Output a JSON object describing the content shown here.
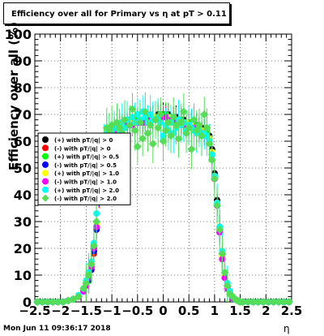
{
  "chart_data": {
    "type": "scatter",
    "title": "Efficiency over all for Primary vs   η at pT > 0.11",
    "xlabel": "η",
    "ylabel": "Efficiency over all (%)",
    "xlim": [
      -2.5,
      2.5
    ],
    "ylim": [
      0,
      100
    ],
    "xticks": [
      "−2.5",
      "−2",
      "−1.5",
      "−1",
      "−0.5",
      "0",
      "0.5",
      "1",
      "1.5",
      "2",
      "2.5"
    ],
    "yticks": [
      "0",
      "10",
      "20",
      "30",
      "40",
      "50",
      "60",
      "70",
      "80",
      "90",
      "100"
    ],
    "grid": true,
    "legend_position": "left",
    "timestamp": "Mon Jun 11 09:36:17 2018",
    "x": [
      -2.45,
      -2.35,
      -2.25,
      -2.15,
      -2.05,
      -1.95,
      -1.85,
      -1.75,
      -1.65,
      -1.55,
      -1.5,
      -1.45,
      -1.4,
      -1.35,
      -1.3,
      -1.25,
      -1.2,
      -1.15,
      -1.1,
      -1.05,
      -1.0,
      -0.95,
      -0.9,
      -0.85,
      -0.8,
      -0.75,
      -0.7,
      -0.65,
      -0.6,
      -0.55,
      -0.5,
      -0.45,
      -0.4,
      -0.35,
      -0.3,
      -0.25,
      -0.2,
      -0.15,
      -0.1,
      -0.05,
      0.0,
      0.05,
      0.1,
      0.15,
      0.2,
      0.25,
      0.3,
      0.35,
      0.4,
      0.45,
      0.5,
      0.55,
      0.6,
      0.65,
      0.7,
      0.75,
      0.8,
      0.85,
      0.9,
      0.95,
      1.0,
      1.05,
      1.1,
      1.15,
      1.2,
      1.25,
      1.3,
      1.35,
      1.4,
      1.45,
      1.5,
      1.55,
      1.65,
      1.75,
      1.85,
      1.95,
      2.05,
      2.15,
      2.25,
      2.35,
      2.45
    ],
    "series": [
      {
        "name": "(+) with pT/|q| > 0",
        "color": "#000000",
        "marker": "circle",
        "values": [
          0,
          0,
          0,
          0,
          0,
          0,
          0.5,
          1,
          2,
          5,
          7,
          9,
          13,
          19,
          28,
          40,
          52,
          58,
          61,
          62,
          63,
          64,
          65,
          66,
          66,
          67,
          67,
          68,
          68,
          68,
          68,
          68,
          68,
          68,
          69,
          69,
          69,
          69,
          70,
          70,
          70,
          70,
          70,
          69,
          69,
          69,
          68,
          68,
          68,
          67,
          67,
          67,
          66,
          66,
          65,
          65,
          64,
          63,
          62,
          57,
          48,
          38,
          28,
          18,
          10,
          6,
          3,
          2,
          1,
          0.5,
          0,
          0,
          0,
          0,
          0,
          0,
          0,
          0,
          0,
          0,
          0
        ]
      },
      {
        "name": "(-) with pT/|q| > 0",
        "color": "#ff0000",
        "marker": "circle",
        "values": [
          0,
          0,
          0,
          0,
          0,
          0,
          0.5,
          1,
          2,
          4,
          6,
          8,
          12,
          18,
          27,
          39,
          51,
          57,
          60,
          61,
          62,
          63,
          64,
          65,
          65,
          66,
          66,
          67,
          67,
          67,
          67,
          67,
          67,
          67,
          68,
          68,
          68,
          68,
          69,
          69,
          69,
          69,
          69,
          68,
          68,
          68,
          67,
          67,
          67,
          66,
          66,
          66,
          65,
          65,
          64,
          64,
          63,
          62,
          61,
          55,
          46,
          36,
          26,
          16,
          9,
          5,
          3,
          1.5,
          1,
          0.5,
          0,
          0,
          0,
          0,
          0,
          0,
          0,
          0,
          0,
          0,
          0
        ]
      },
      {
        "name": "(+) with pT/|q| > 0.5",
        "color": "#00ff00",
        "marker": "circle",
        "values": [
          0,
          0,
          0,
          0,
          0,
          0,
          0.5,
          1,
          2,
          5,
          7,
          9,
          13,
          20,
          28,
          41,
          52,
          58,
          61,
          62,
          63,
          64,
          65,
          65,
          66,
          66,
          67,
          67,
          67,
          68,
          68,
          68,
          68,
          68,
          68,
          69,
          69,
          69,
          69,
          70,
          70,
          70,
          69,
          69,
          69,
          68,
          68,
          68,
          67,
          67,
          67,
          66,
          66,
          65,
          65,
          64,
          64,
          63,
          61,
          56,
          47,
          37,
          27,
          17,
          10,
          6,
          3,
          2,
          1,
          0.5,
          0,
          0,
          0,
          0,
          0,
          0,
          0,
          0,
          0,
          0,
          0
        ]
      },
      {
        "name": "(-) with pT/|q| > 0.5",
        "color": "#0000ff",
        "marker": "circle",
        "values": [
          0,
          0,
          0,
          0,
          0,
          0,
          0.5,
          1,
          2,
          4,
          6,
          8,
          12,
          19,
          27,
          40,
          51,
          57,
          60,
          61,
          62,
          63,
          64,
          65,
          65,
          66,
          66,
          66,
          67,
          67,
          67,
          67,
          68,
          68,
          68,
          68,
          68,
          69,
          69,
          69,
          69,
          69,
          69,
          68,
          68,
          68,
          67,
          67,
          67,
          66,
          66,
          66,
          65,
          65,
          64,
          64,
          63,
          62,
          60,
          55,
          46,
          36,
          26,
          16,
          9,
          5,
          3,
          1.5,
          1,
          0.5,
          0,
          0,
          0,
          0,
          0,
          0,
          0,
          0,
          0,
          0,
          0
        ]
      },
      {
        "name": "(+) with pT/|q| > 1.0",
        "color": "#ffff00",
        "marker": "circle",
        "values": [
          0,
          0,
          0,
          0,
          0,
          0,
          0.5,
          1,
          2,
          5,
          7,
          10,
          14,
          21,
          29,
          42,
          53,
          58,
          61,
          62,
          63,
          64,
          64,
          65,
          65,
          66,
          66,
          67,
          67,
          67,
          67,
          68,
          68,
          68,
          68,
          68,
          69,
          69,
          69,
          69,
          69,
          69,
          69,
          68,
          68,
          68,
          68,
          67,
          67,
          67,
          66,
          66,
          65,
          65,
          64,
          64,
          63,
          62,
          61,
          56,
          47,
          37,
          27,
          17,
          10,
          6,
          3,
          2,
          1,
          0.5,
          0,
          0,
          0,
          0,
          0,
          0,
          0,
          0,
          0,
          0,
          0
        ]
      },
      {
        "name": "(-) with pT/|q| > 1.0",
        "color": "#ff00ff",
        "marker": "circle",
        "values": [
          0,
          0,
          0,
          0,
          0,
          0,
          0.5,
          1,
          2,
          4,
          6,
          9,
          13,
          20,
          28,
          41,
          52,
          57,
          60,
          61,
          62,
          63,
          64,
          64,
          65,
          65,
          66,
          66,
          66,
          67,
          67,
          67,
          67,
          67,
          68,
          68,
          68,
          68,
          68,
          68,
          69,
          69,
          68,
          68,
          68,
          67,
          67,
          67,
          66,
          66,
          66,
          65,
          65,
          64,
          64,
          63,
          63,
          62,
          60,
          55,
          46,
          36,
          26,
          16,
          9,
          5,
          3,
          1.5,
          1,
          0.5,
          0,
          0,
          0,
          0,
          0,
          0,
          0,
          0,
          0,
          0,
          0
        ]
      },
      {
        "name": "(+) with pT/|q| > 2.0",
        "color": "#00ffff",
        "marker": "circle",
        "values": [
          0,
          0,
          0,
          0,
          0,
          0,
          0.5,
          1,
          2.5,
          5,
          8,
          11,
          15,
          22,
          33,
          44,
          55,
          60,
          63,
          64,
          63,
          65,
          66,
          64,
          67,
          65,
          68,
          66,
          69,
          67,
          70,
          68,
          71,
          69,
          67,
          70,
          68,
          68,
          69,
          67,
          62,
          66,
          64,
          67,
          63,
          65,
          68,
          66,
          67,
          64,
          66,
          65,
          64,
          63,
          64,
          62,
          63,
          62,
          60,
          55,
          47,
          37,
          28,
          19,
          11,
          7,
          4,
          2,
          1,
          0.5,
          0,
          0,
          0,
          0,
          0,
          0,
          0,
          0,
          0,
          0,
          0
        ]
      },
      {
        "name": "(-) with pT/|q| > 2.0",
        "color": "#55dd55",
        "marker": "diamond",
        "values": [
          0,
          0,
          0,
          0,
          0,
          0,
          0.5,
          1,
          2,
          5,
          7,
          10,
          14,
          21,
          30,
          43,
          54,
          59,
          65,
          64,
          66,
          62,
          67,
          65,
          63,
          68,
          60,
          66,
          72,
          64,
          58,
          67,
          61,
          71,
          63,
          66,
          59,
          68,
          65,
          70,
          60,
          64,
          67,
          62,
          69,
          66,
          61,
          67,
          71,
          63,
          65,
          57,
          68,
          64,
          66,
          62,
          70,
          65,
          59,
          53,
          46,
          36,
          27,
          18,
          11,
          6,
          3,
          2,
          1,
          0.5,
          0,
          0,
          0,
          0,
          0,
          0,
          0,
          0,
          0,
          0,
          0
        ]
      }
    ]
  }
}
